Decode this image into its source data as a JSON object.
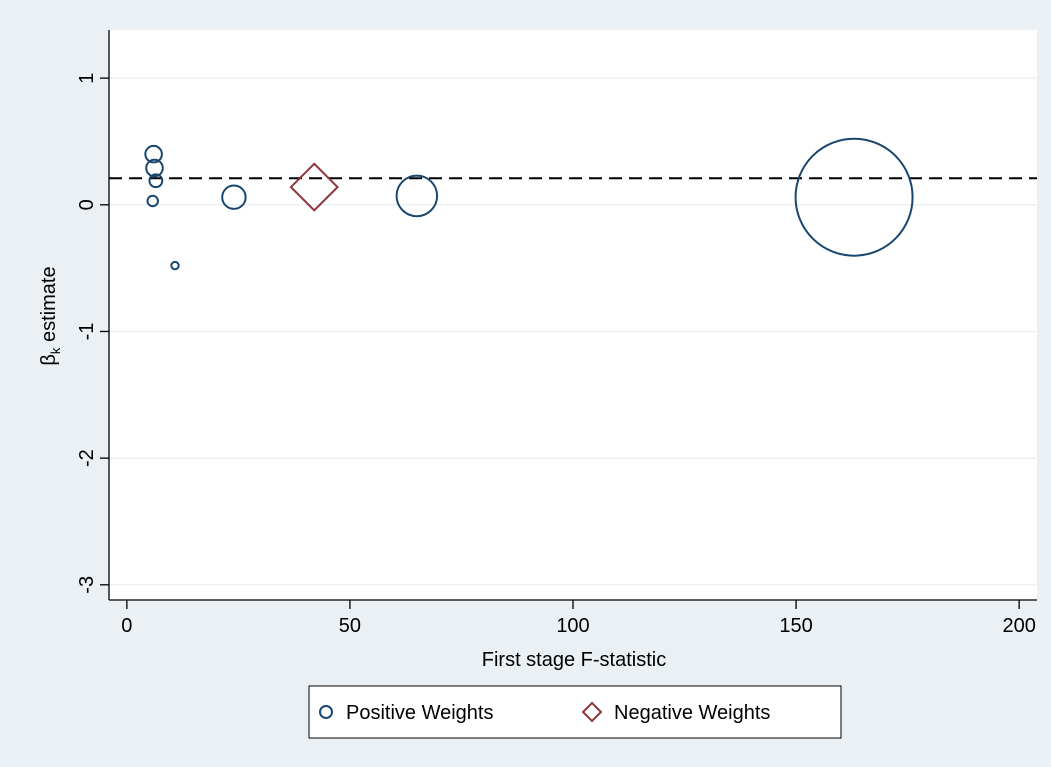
{
  "chart_data": {
    "type": "scatter",
    "xlabel": "First stage F-statistic",
    "ylabel_main": "β",
    "ylabel_sub": "k",
    "ylabel_rest": " estimate",
    "xlim": [
      -4,
      204
    ],
    "ylim": [
      -3.12,
      1.38
    ],
    "xticks": [
      0,
      50,
      100,
      150,
      200
    ],
    "yticks": [
      1,
      0,
      -1,
      -2,
      -3
    ],
    "grid": "horizontal",
    "reference_line": {
      "y": 0.21,
      "style": "dashed"
    },
    "legend": {
      "placement": "bottom"
    },
    "colors": {
      "positive": "#1a476f",
      "negative": "#90353b",
      "plot_bg": "#ffffff",
      "outer_bg": "#eaf0f4",
      "grid": "#eaf0f4"
    },
    "series": [
      {
        "name": "Positive Weights",
        "marker": "circle",
        "points": [
          {
            "x": 6.0,
            "y": 0.4,
            "weight": 0.5
          },
          {
            "x": 6.2,
            "y": 0.29,
            "weight": 0.5
          },
          {
            "x": 6.5,
            "y": 0.19,
            "weight": 0.3
          },
          {
            "x": 5.8,
            "y": 0.03,
            "weight": 0.2
          },
          {
            "x": 10.8,
            "y": -0.48,
            "weight": 0.1
          },
          {
            "x": 24.0,
            "y": 0.06,
            "weight": 1.0
          },
          {
            "x": 65.0,
            "y": 0.07,
            "weight": 3.0
          },
          {
            "x": 163.0,
            "y": 0.06,
            "weight": 25.0
          }
        ]
      },
      {
        "name": "Negative Weights",
        "marker": "diamond",
        "points": [
          {
            "x": 42.0,
            "y": 0.14,
            "weight": 3.0
          }
        ]
      }
    ]
  }
}
